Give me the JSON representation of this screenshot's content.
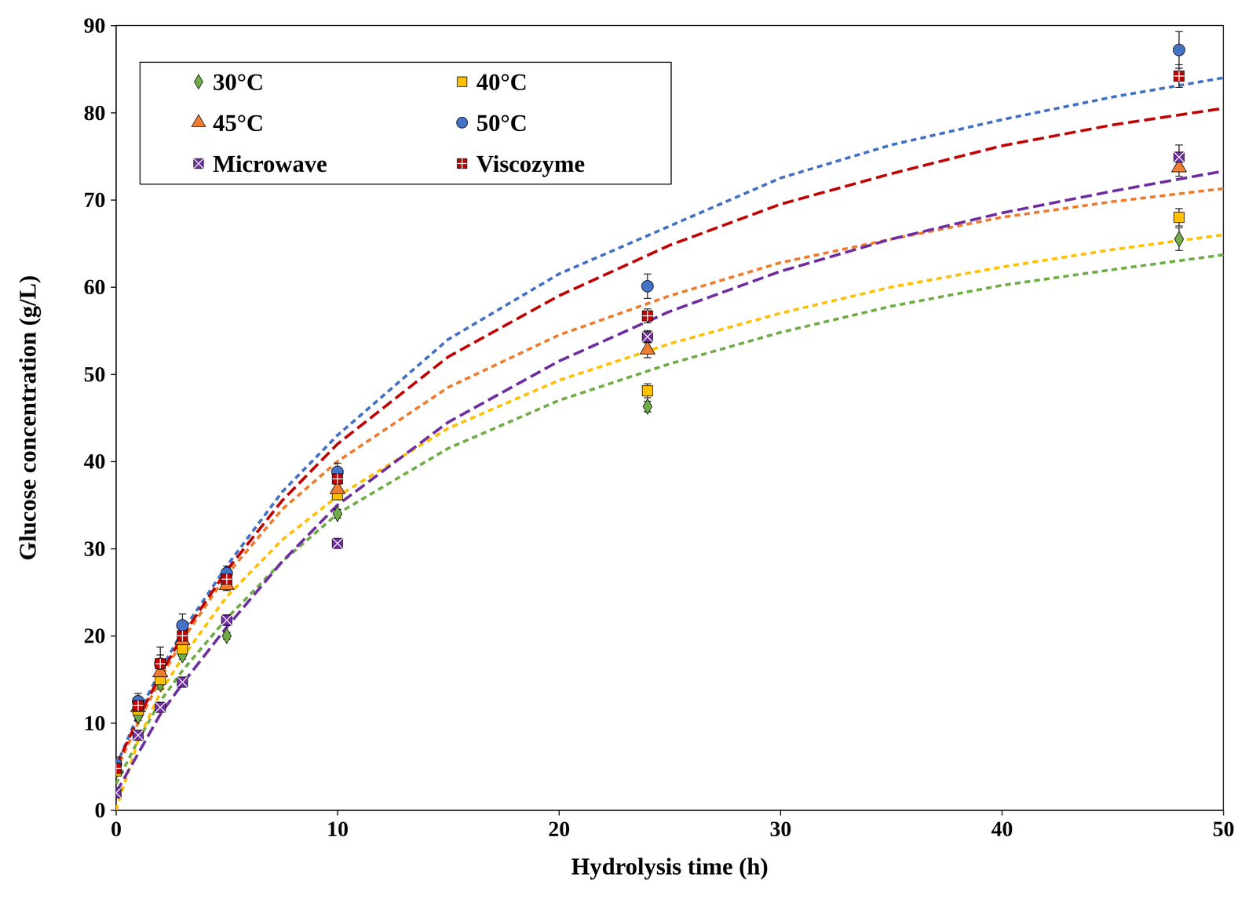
{
  "chart_data": {
    "type": "scatter",
    "x_label": "Hydrolysis time (h)",
    "y_label": "Glucose concentration (g/L)",
    "xlim": [
      0,
      50
    ],
    "xticks": [
      0,
      10,
      20,
      30,
      40,
      50
    ],
    "ylim": [
      0,
      90
    ],
    "yticks": [
      0,
      10,
      20,
      30,
      40,
      50,
      60,
      70,
      80,
      90
    ],
    "grid": false,
    "legend": "upper left",
    "x": [
      0,
      1,
      2,
      3,
      5,
      10,
      24,
      48
    ],
    "fit_x": [
      0,
      1,
      2,
      3,
      5,
      7.5,
      10,
      15,
      20,
      25,
      30,
      35,
      40,
      45,
      50
    ],
    "series": [
      {
        "name": "30°C",
        "color": "#70ad47",
        "marker": "diamond",
        "line_style": "dashed",
        "values": [
          4.5,
          10.8,
          14.5,
          17.8,
          20,
          34,
          46.3,
          65.5
        ],
        "errors": [
          0.4,
          0.5,
          0.6,
          0.5,
          0.4,
          0.5,
          0.6,
          1.3
        ],
        "fit_values": [
          3,
          8,
          12.5,
          16,
          22,
          28.5,
          34,
          41.5,
          47,
          51.2,
          54.8,
          57.8,
          60.2,
          62,
          63.7
        ]
      },
      {
        "name": "40°C",
        "color": "#ffc000",
        "marker": "square",
        "line_style": "dashed",
        "values": [
          4.5,
          11.5,
          15,
          18.5,
          26,
          36.2,
          48.1,
          68
        ],
        "errors": [
          0.5,
          0.6,
          0.7,
          0.6,
          0.5,
          0.6,
          0.8,
          1.0
        ],
        "fit_values": [
          0,
          8,
          13.5,
          17.5,
          24.5,
          31,
          36,
          43.8,
          49.3,
          53.5,
          57,
          60,
          62.3,
          64.3,
          66
        ]
      },
      {
        "name": "45°C",
        "color": "#ed7d31",
        "marker": "triangle",
        "line_style": "dashed",
        "values": [
          4.8,
          11.8,
          15.8,
          19.5,
          25.8,
          36.8,
          52.8,
          73.7
        ],
        "errors": [
          0.5,
          0.6,
          0.7,
          0.6,
          0.6,
          0.6,
          0.9,
          1.0
        ],
        "fit_values": [
          4.5,
          10,
          15,
          19.5,
          27,
          34.5,
          40,
          48.5,
          54.5,
          59,
          62.8,
          65.5,
          68,
          69.8,
          71.3
        ]
      },
      {
        "name": "50°C",
        "color": "#4472c4",
        "marker": "circle",
        "line_style": "dashed",
        "values": [
          5.3,
          12.5,
          16.8,
          21.2,
          27.2,
          38.8,
          60.1,
          87.2
        ],
        "errors": [
          0.8,
          0.9,
          1.0,
          1.3,
          0.8,
          1.0,
          1.4,
          2.1
        ],
        "fit_values": [
          5,
          11,
          16,
          20.5,
          28,
          36.5,
          43,
          54,
          61.5,
          67,
          72.5,
          76.3,
          79.2,
          81.8,
          84
        ]
      },
      {
        "name": "Microwave",
        "color": "#7030a0",
        "marker": "square-x",
        "line_style": "long-dashed",
        "values": [
          2,
          8.6,
          11.8,
          14.7,
          21.8,
          30.6,
          54.3,
          74.9
        ],
        "errors": [
          0.4,
          0.5,
          0.5,
          0.5,
          0.6,
          0.5,
          0.7,
          1.4
        ],
        "fit_values": [
          2,
          6.5,
          11,
          14.5,
          21,
          28.5,
          35,
          44.5,
          51.5,
          57.2,
          61.8,
          65.5,
          68.5,
          71,
          73.3
        ]
      },
      {
        "name": "Viscozyme",
        "color": "#c00000",
        "marker": "square-plus",
        "line_style": "long-dashed",
        "values": [
          4.8,
          12,
          16.8,
          20,
          26.5,
          38,
          56.7,
          84.2
        ],
        "errors": [
          0.6,
          0.8,
          1.9,
          1.0,
          0.8,
          1.0,
          0.8,
          1.3
        ],
        "fit_values": [
          5,
          10.5,
          15.5,
          20,
          27.5,
          35.5,
          42,
          52,
          59,
          64.8,
          69.5,
          73,
          76.2,
          78.6,
          80.5
        ]
      }
    ]
  }
}
